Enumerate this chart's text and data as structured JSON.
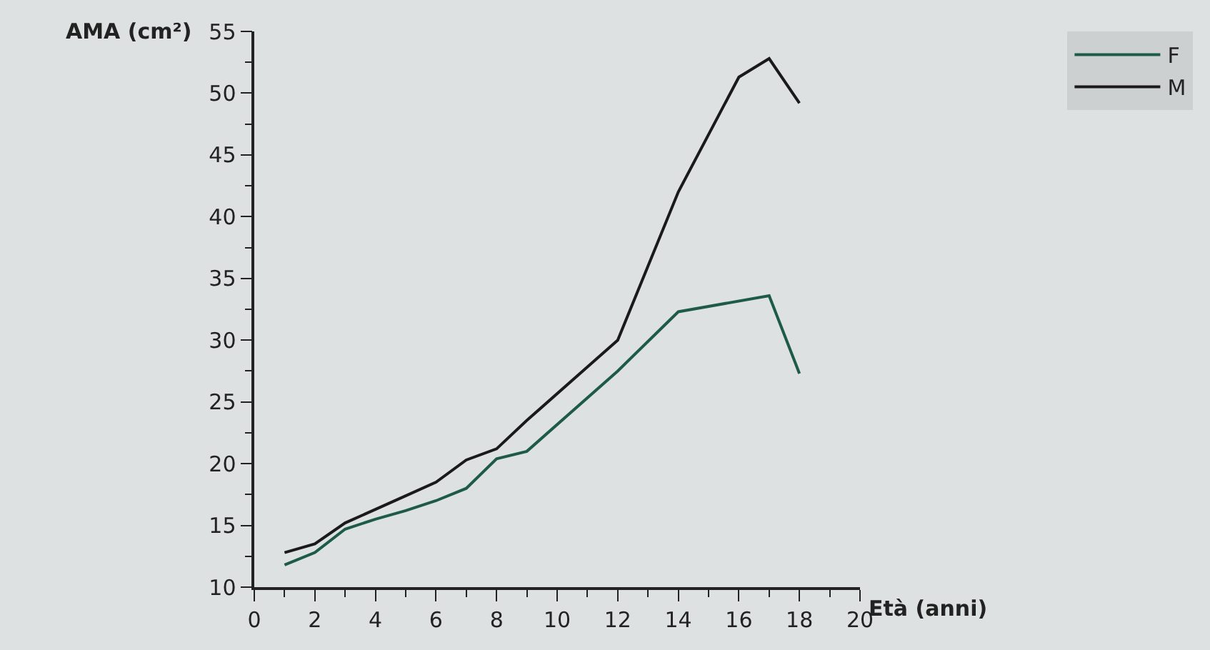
{
  "chart_data": {
    "type": "line",
    "xlabel": "Età (anni)",
    "ylabel": "AMA (cm²)",
    "x": [
      1,
      2,
      3,
      4,
      5,
      6,
      7,
      8,
      9,
      12,
      14,
      16,
      17,
      18
    ],
    "series": [
      {
        "name": "F",
        "color": "#1e5a48",
        "x": [
          1,
          2,
          3,
          4,
          5,
          6,
          7,
          8,
          9,
          12,
          14,
          17,
          18
        ],
        "values": [
          11.8,
          12.8,
          14.7,
          15.5,
          16.2,
          17.0,
          18.0,
          20.4,
          21.0,
          27.5,
          32.3,
          33.6,
          27.3
        ]
      },
      {
        "name": "M",
        "color": "#1a1a1a",
        "values": [
          12.8,
          13.5,
          15.2,
          16.3,
          17.4,
          18.5,
          20.3,
          21.2,
          23.5,
          30.0,
          42.0,
          51.3,
          52.8,
          49.2
        ]
      }
    ],
    "xlim": [
      0,
      20
    ],
    "ylim": [
      10,
      55
    ],
    "xticks": [
      0,
      {
        "value": 1,
        "label": null
      },
      2,
      {
        "value": 3,
        "label": null
      },
      4,
      {
        "value": 5,
        "label": null
      },
      6,
      {
        "value": 7,
        "label": null
      },
      8,
      {
        "value": 9,
        "label": null
      },
      10,
      {
        "value": 11,
        "label": null
      },
      12,
      {
        "value": 13,
        "label": null
      },
      14,
      {
        "value": 15,
        "label": null
      },
      16,
      {
        "value": 17,
        "label": null
      },
      18,
      {
        "value": 19,
        "label": null
      },
      20
    ],
    "yticks": [
      10,
      {
        "value": 12.5,
        "label": null
      },
      15,
      {
        "value": 17.5,
        "label": null
      },
      20,
      {
        "value": 22.5,
        "label": null
      },
      25,
      {
        "value": 27.5,
        "label": null
      },
      30,
      {
        "value": 32.5,
        "label": null
      },
      35,
      {
        "value": 37.5,
        "label": null
      },
      40,
      {
        "value": 42.5,
        "label": null
      },
      45,
      {
        "value": 47.5,
        "label": null
      },
      50,
      {
        "value": 52.5,
        "label": null
      },
      55
    ],
    "legend": "top right",
    "grid": false,
    "marker": "none",
    "line_style": "solid"
  }
}
